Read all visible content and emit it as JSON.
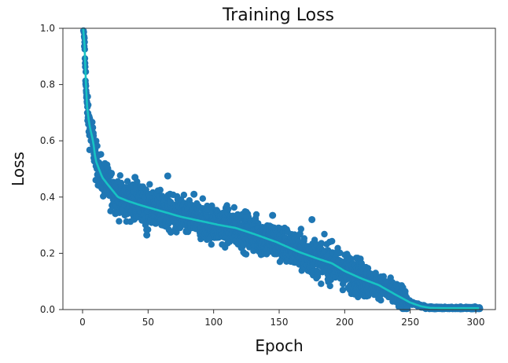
{
  "chart_data": {
    "type": "scatter",
    "title": "Training Loss",
    "xlabel": "Epoch",
    "ylabel": "Loss",
    "xlim": [
      -15,
      315
    ],
    "ylim": [
      0.0,
      1.0
    ],
    "xticks": [
      0,
      50,
      100,
      150,
      200,
      250,
      300
    ],
    "xtick_labels": [
      "0",
      "50",
      "100",
      "150",
      "200",
      "250",
      "300"
    ],
    "yticks": [
      0.0,
      0.2,
      0.4,
      0.6,
      0.8,
      1.0
    ],
    "ytick_labels": [
      "0.0",
      "0.2",
      "0.4",
      "0.6",
      "0.8",
      "1.0"
    ],
    "grid": false,
    "legend": null,
    "series": [
      {
        "name": "per-iteration loss (scatter)",
        "kind": "scatter",
        "color": "#1f77b4",
        "note": "dense scatter band around smoothed curve, approx ±0.08 spread",
        "band_halfwidth": 0.08
      },
      {
        "name": "smoothed loss (line)",
        "kind": "line",
        "color": "#17c3c3",
        "x": [
          0.5,
          1,
          2,
          3,
          5,
          8,
          10,
          15,
          20,
          27,
          35,
          45,
          60,
          75,
          90,
          105,
          117,
          130,
          148,
          165,
          180,
          190,
          200,
          213,
          226,
          240,
          250,
          258,
          265,
          275,
          290,
          303
        ],
        "y": [
          1.0,
          1.0,
          0.88,
          0.74,
          0.66,
          0.6,
          0.53,
          0.47,
          0.44,
          0.4,
          0.385,
          0.37,
          0.35,
          0.33,
          0.315,
          0.3,
          0.29,
          0.27,
          0.24,
          0.205,
          0.18,
          0.165,
          0.137,
          0.11,
          0.087,
          0.05,
          0.025,
          0.012,
          0.006,
          0.005,
          0.005,
          0.005
        ]
      }
    ]
  }
}
